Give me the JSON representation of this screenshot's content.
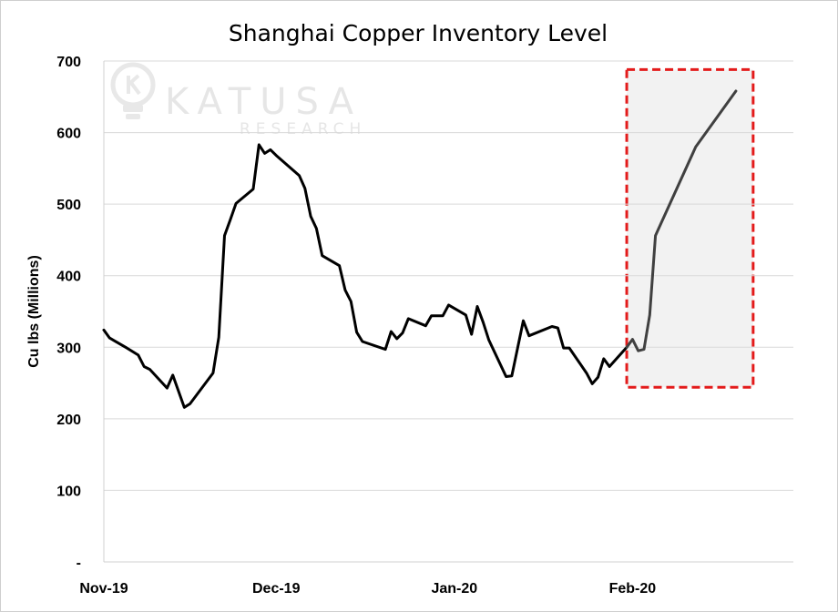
{
  "chart_data": {
    "type": "line",
    "title": "Shanghai Copper Inventory Level",
    "xlabel": "",
    "ylabel": "Cu lbs (Millions)",
    "ylim": [
      0,
      700
    ],
    "yticks": [
      {
        "value": 0,
        "label": "-"
      },
      {
        "value": 100,
        "label": "100"
      },
      {
        "value": 200,
        "label": "200"
      },
      {
        "value": 300,
        "label": "300"
      },
      {
        "value": 400,
        "label": "400"
      },
      {
        "value": 500,
        "label": "500"
      },
      {
        "value": 600,
        "label": "600"
      },
      {
        "value": 700,
        "label": "700"
      }
    ],
    "xlim": [
      "2019-11-01",
      "2020-02-29"
    ],
    "xticks": [
      {
        "date": "2019-11-01",
        "label": "Nov-19"
      },
      {
        "date": "2019-12-01",
        "label": "Dec-19"
      },
      {
        "date": "2020-01-01",
        "label": "Jan-20"
      },
      {
        "date": "2020-02-01",
        "label": "Feb-20"
      }
    ],
    "grid": "horizontal",
    "legend": "none",
    "series": [
      {
        "name": "",
        "color": "#000000",
        "points": [
          [
            "2019-11-01",
            324
          ],
          [
            "2019-11-02",
            313
          ],
          [
            "2019-11-05",
            299
          ],
          [
            "2019-11-07",
            289
          ],
          [
            "2019-11-08",
            273
          ],
          [
            "2019-11-09",
            269
          ],
          [
            "2019-11-12",
            243
          ],
          [
            "2019-11-13",
            261
          ],
          [
            "2019-11-15",
            216
          ],
          [
            "2019-11-16",
            221
          ],
          [
            "2019-11-20",
            264
          ],
          [
            "2019-11-21",
            314
          ],
          [
            "2019-11-22",
            456
          ],
          [
            "2019-11-23",
            478
          ],
          [
            "2019-11-24",
            501
          ],
          [
            "2019-11-27",
            521
          ],
          [
            "2019-11-28",
            583
          ],
          [
            "2019-11-29",
            571
          ],
          [
            "2019-11-30",
            576
          ],
          [
            "2019-12-01",
            568
          ],
          [
            "2019-12-05",
            540
          ],
          [
            "2019-12-06",
            522
          ],
          [
            "2019-12-07",
            483
          ],
          [
            "2019-12-08",
            466
          ],
          [
            "2019-12-09",
            428
          ],
          [
            "2019-12-12",
            414
          ],
          [
            "2019-12-13",
            380
          ],
          [
            "2019-12-14",
            364
          ],
          [
            "2019-12-15",
            321
          ],
          [
            "2019-12-16",
            308
          ],
          [
            "2019-12-20",
            297
          ],
          [
            "2019-12-21",
            322
          ],
          [
            "2019-12-22",
            312
          ],
          [
            "2019-12-23",
            320
          ],
          [
            "2019-12-24",
            340
          ],
          [
            "2019-12-27",
            330
          ],
          [
            "2019-12-28",
            344
          ],
          [
            "2019-12-30",
            344
          ],
          [
            "2019-12-31",
            359
          ],
          [
            "2020-01-03",
            345
          ],
          [
            "2020-01-04",
            318
          ],
          [
            "2020-01-05",
            357
          ],
          [
            "2020-01-06",
            335
          ],
          [
            "2020-01-07",
            310
          ],
          [
            "2020-01-10",
            259
          ],
          [
            "2020-01-11",
            260
          ],
          [
            "2020-01-13",
            337
          ],
          [
            "2020-01-14",
            316
          ],
          [
            "2020-01-18",
            329
          ],
          [
            "2020-01-19",
            327
          ],
          [
            "2020-01-20",
            299
          ],
          [
            "2020-01-21",
            299
          ],
          [
            "2020-01-24",
            264
          ],
          [
            "2020-01-25",
            249
          ],
          [
            "2020-01-26",
            258
          ],
          [
            "2020-01-27",
            284
          ],
          [
            "2020-01-28",
            273
          ],
          [
            "2020-01-31",
            300
          ]
        ]
      },
      {
        "name": "",
        "color": "#404040",
        "points": [
          [
            "2020-01-31",
            300
          ],
          [
            "2020-02-01",
            311
          ],
          [
            "2020-02-02",
            295
          ],
          [
            "2020-02-03",
            297
          ],
          [
            "2020-02-04",
            345
          ],
          [
            "2020-02-05",
            456
          ],
          [
            "2020-02-12",
            580
          ],
          [
            "2020-02-19",
            658
          ]
        ]
      }
    ],
    "annotations": [
      {
        "kind": "highlight-box",
        "description": "dashed red rectangle with light grey fill around the February segment",
        "x_range": [
          "2020-01-31",
          "2020-02-22"
        ],
        "y_range": [
          244,
          688
        ],
        "stroke": "#e31b1b",
        "fill": "#f2f2f2"
      }
    ]
  },
  "watermark": {
    "brand": "KATUSA",
    "sub": "RESEARCH",
    "color": "#e6e6e6"
  }
}
